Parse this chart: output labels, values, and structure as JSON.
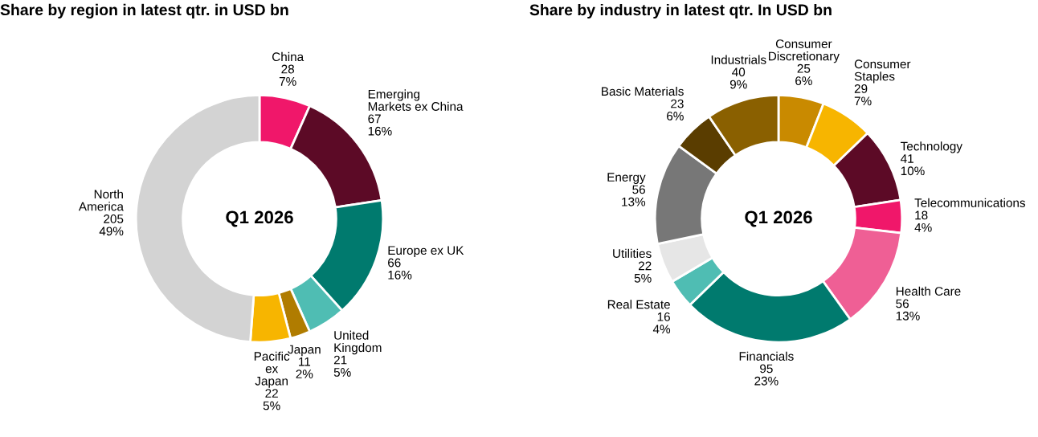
{
  "chart_data": [
    {
      "type": "donut",
      "title": "Share by region in latest qtr. in USD bn",
      "annotations": [
        "Q1 2026"
      ],
      "legend": false,
      "categories": [
        "China",
        "Emerging\nMarkets ex China",
        "Europe ex UK",
        "United\nKingdom",
        "Japan",
        "Pacific\nex\nJapan",
        "North\nAmerica"
      ],
      "values": [
        28,
        67,
        66,
        21,
        11,
        22,
        205
      ],
      "value_labels": [
        "28\n7%",
        "67\n16%",
        "66\n16%",
        "21\n5%",
        "11\n2%",
        "22\n5%",
        "205\n49%"
      ],
      "colors": [
        "#f0176a",
        "#5c0a26",
        "#007a6e",
        "#4fbdb3",
        "#b07c00",
        "#f7b500",
        "#d3d3d3"
      ]
    },
    {
      "type": "donut",
      "title": "Share by industry in latest qtr. In USD bn",
      "annotations": [
        "Q1 2026"
      ],
      "legend": false,
      "categories": [
        "Consumer\nDiscretionary",
        "Consumer\nStaples",
        "Technology",
        "Telecommunications",
        "Health Care",
        "Financials",
        "Real Estate",
        "Utilities",
        "Energy",
        "Basic Materials",
        "Industrials"
      ],
      "values": [
        25,
        29,
        41,
        18,
        56,
        95,
        16,
        22,
        56,
        23,
        40
      ],
      "value_labels": [
        "25\n6%",
        "29\n7%",
        "41\n10%",
        "18\n4%",
        "56\n13%",
        "95\n23%",
        "16\n4%",
        "22\n5%",
        "56\n13%",
        "23\n6%",
        "40\n9%"
      ],
      "colors": [
        "#c98a00",
        "#f7b500",
        "#5c0a26",
        "#f0176a",
        "#ef5f95",
        "#007a6e",
        "#4fbdb3",
        "#e6e6e6",
        "#777777",
        "#5a3d00",
        "#8a6000"
      ]
    }
  ]
}
